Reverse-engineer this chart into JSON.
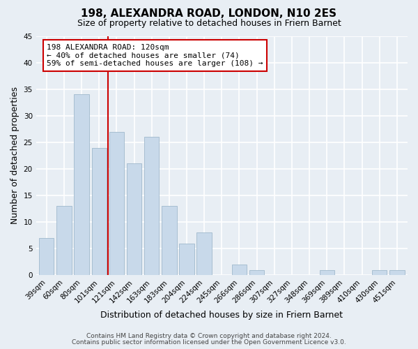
{
  "title": "198, ALEXANDRA ROAD, LONDON, N10 2ES",
  "subtitle": "Size of property relative to detached houses in Friern Barnet",
  "xlabel": "Distribution of detached houses by size in Friern Barnet",
  "ylabel": "Number of detached properties",
  "footer_line1": "Contains HM Land Registry data © Crown copyright and database right 2024.",
  "footer_line2": "Contains public sector information licensed under the Open Government Licence v3.0.",
  "categories": [
    "39sqm",
    "60sqm",
    "80sqm",
    "101sqm",
    "121sqm",
    "142sqm",
    "163sqm",
    "183sqm",
    "204sqm",
    "224sqm",
    "245sqm",
    "266sqm",
    "286sqm",
    "307sqm",
    "327sqm",
    "348sqm",
    "369sqm",
    "389sqm",
    "410sqm",
    "430sqm",
    "451sqm"
  ],
  "values": [
    7,
    13,
    34,
    24,
    27,
    21,
    26,
    13,
    6,
    8,
    0,
    2,
    1,
    0,
    0,
    0,
    1,
    0,
    0,
    1,
    1
  ],
  "bar_color": "#c8d9ea",
  "bar_edge_color": "#a0b8cc",
  "vline_color": "#cc0000",
  "annotation_text": "198 ALEXANDRA ROAD: 120sqm\n← 40% of detached houses are smaller (74)\n59% of semi-detached houses are larger (108) →",
  "annotation_box_color": "white",
  "annotation_box_edge_color": "#cc0000",
  "ylim": [
    0,
    45
  ],
  "yticks": [
    0,
    5,
    10,
    15,
    20,
    25,
    30,
    35,
    40,
    45
  ],
  "background_color": "#e8eef4",
  "grid_color": "white",
  "title_fontsize": 11,
  "subtitle_fontsize": 9,
  "axis_label_fontsize": 9,
  "tick_fontsize": 7.5,
  "annotation_fontsize": 8,
  "footer_fontsize": 6.5
}
